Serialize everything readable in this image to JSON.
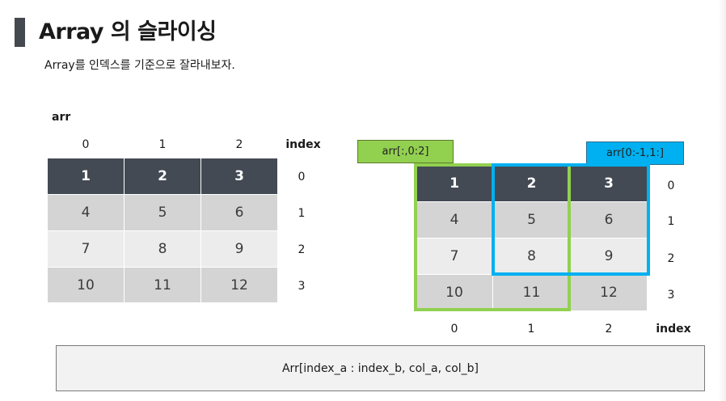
{
  "title": "Array 의 슬라이싱",
  "subtitle": "Array를 인덱스를 기준으로 잘라내보자.",
  "left": {
    "label": "arr",
    "col_labels": [
      "0",
      "1",
      "2"
    ],
    "index_label": "index",
    "row_labels": [
      "0",
      "1",
      "2",
      "3"
    ],
    "rows": [
      [
        "1",
        "2",
        "3"
      ],
      [
        "4",
        "5",
        "6"
      ],
      [
        "7",
        "8",
        "9"
      ],
      [
        "10",
        "11",
        "12"
      ]
    ]
  },
  "right": {
    "col_labels": [
      "0",
      "1",
      "2"
    ],
    "index_label": "index",
    "row_labels": [
      "0",
      "1",
      "2",
      "3"
    ],
    "rows": [
      [
        "1",
        "2",
        "3"
      ],
      [
        "4",
        "5",
        "6"
      ],
      [
        "7",
        "8",
        "9"
      ],
      [
        "10",
        "11",
        "12"
      ]
    ],
    "green_tag": "arr[:,0:2]",
    "blue_tag": "arr[0:-1,1:]"
  },
  "formula": "Arr[index_a : index_b, col_a, col_b]",
  "colors": {
    "header": "#434a54",
    "green": "#92d050",
    "blue": "#00b0f0"
  }
}
